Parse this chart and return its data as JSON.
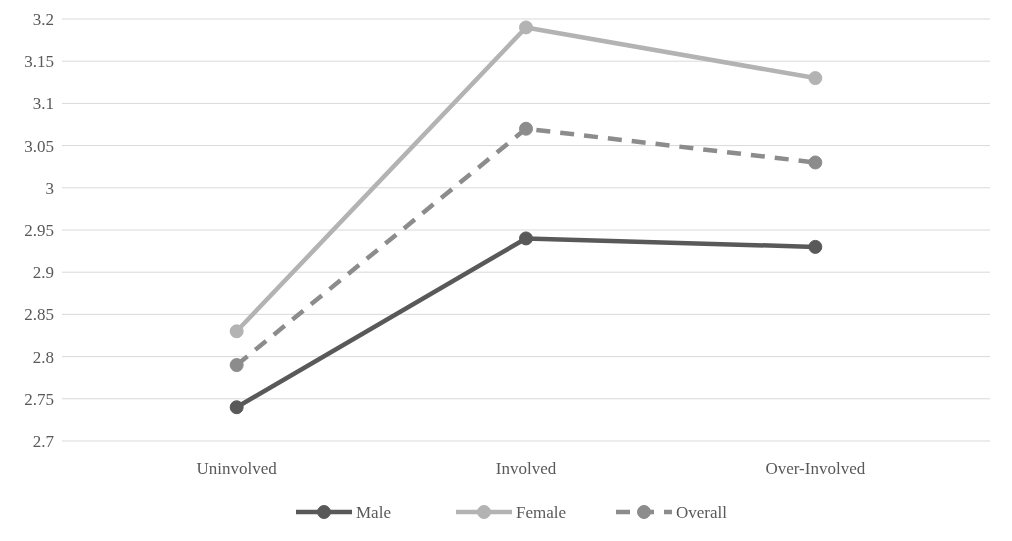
{
  "chart_data": {
    "type": "line",
    "categories": [
      "Uninvolved",
      "Involved",
      "Over-Involved"
    ],
    "series": [
      {
        "name": "Male",
        "color": "#595959",
        "values": [
          2.74,
          2.94,
          2.93
        ],
        "line_style": "solid"
      },
      {
        "name": "Female",
        "color": "#b3b3b3",
        "values": [
          2.83,
          3.19,
          3.13
        ],
        "line_style": "solid"
      },
      {
        "name": "Overall",
        "color": "#8c8c8c",
        "values": [
          2.79,
          3.07,
          3.03
        ],
        "line_style": "dashed"
      }
    ],
    "ylim": [
      2.7,
      3.2
    ],
    "yticks": [
      2.7,
      2.75,
      2.8,
      2.85,
      2.9,
      2.95,
      3,
      3.05,
      3.1,
      3.15,
      3.2
    ],
    "grid": "y",
    "legend": "bottom",
    "marker": "circle"
  }
}
